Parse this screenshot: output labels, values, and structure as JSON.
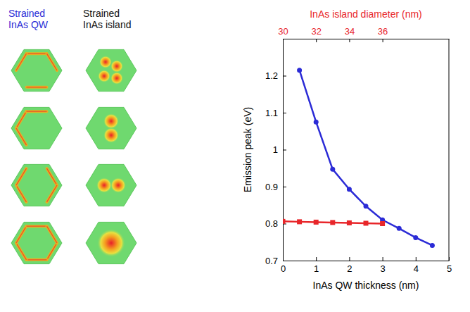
{
  "chart_data": {
    "type": "line",
    "xlabel": "InAs QW thickness (nm)",
    "ylabel": "Emission peak (eV)",
    "x2label": "InAs island diameter (nm)",
    "xlim": [
      0,
      5
    ],
    "xticks": [
      0,
      1,
      2,
      3,
      4,
      5
    ],
    "x2lim": [
      30,
      40
    ],
    "x2ticks": [
      30,
      32,
      34,
      36
    ],
    "ylim": [
      0.7,
      1.3
    ],
    "yticks": [
      0.7,
      0.8,
      0.9,
      1,
      1.1,
      1.2
    ],
    "grid": false,
    "annotations": [
      {
        "text": "Strained InAs QW",
        "color": "#2b2bd6"
      },
      {
        "text": "Strained InAs island",
        "color": "#111111"
      }
    ],
    "series": [
      {
        "color": "#2b2bd6",
        "marker": "circle",
        "line_style": "solid",
        "x": [
          0.5,
          1,
          1.5,
          2,
          2.5,
          3,
          3.5,
          4,
          4.5
        ],
        "values": [
          1.215,
          1.075,
          0.947,
          0.893,
          0.847,
          0.81,
          0.787,
          0.762,
          0.741
        ]
      },
      {
        "color": "#e8262a",
        "marker": "square",
        "line_style": "solid",
        "axis": "x2",
        "x": [
          30,
          31,
          32,
          33,
          34,
          35,
          36
        ],
        "values": [
          0.806,
          0.805,
          0.804,
          0.803,
          0.802,
          0.801,
          0.8
        ]
      }
    ]
  }
}
